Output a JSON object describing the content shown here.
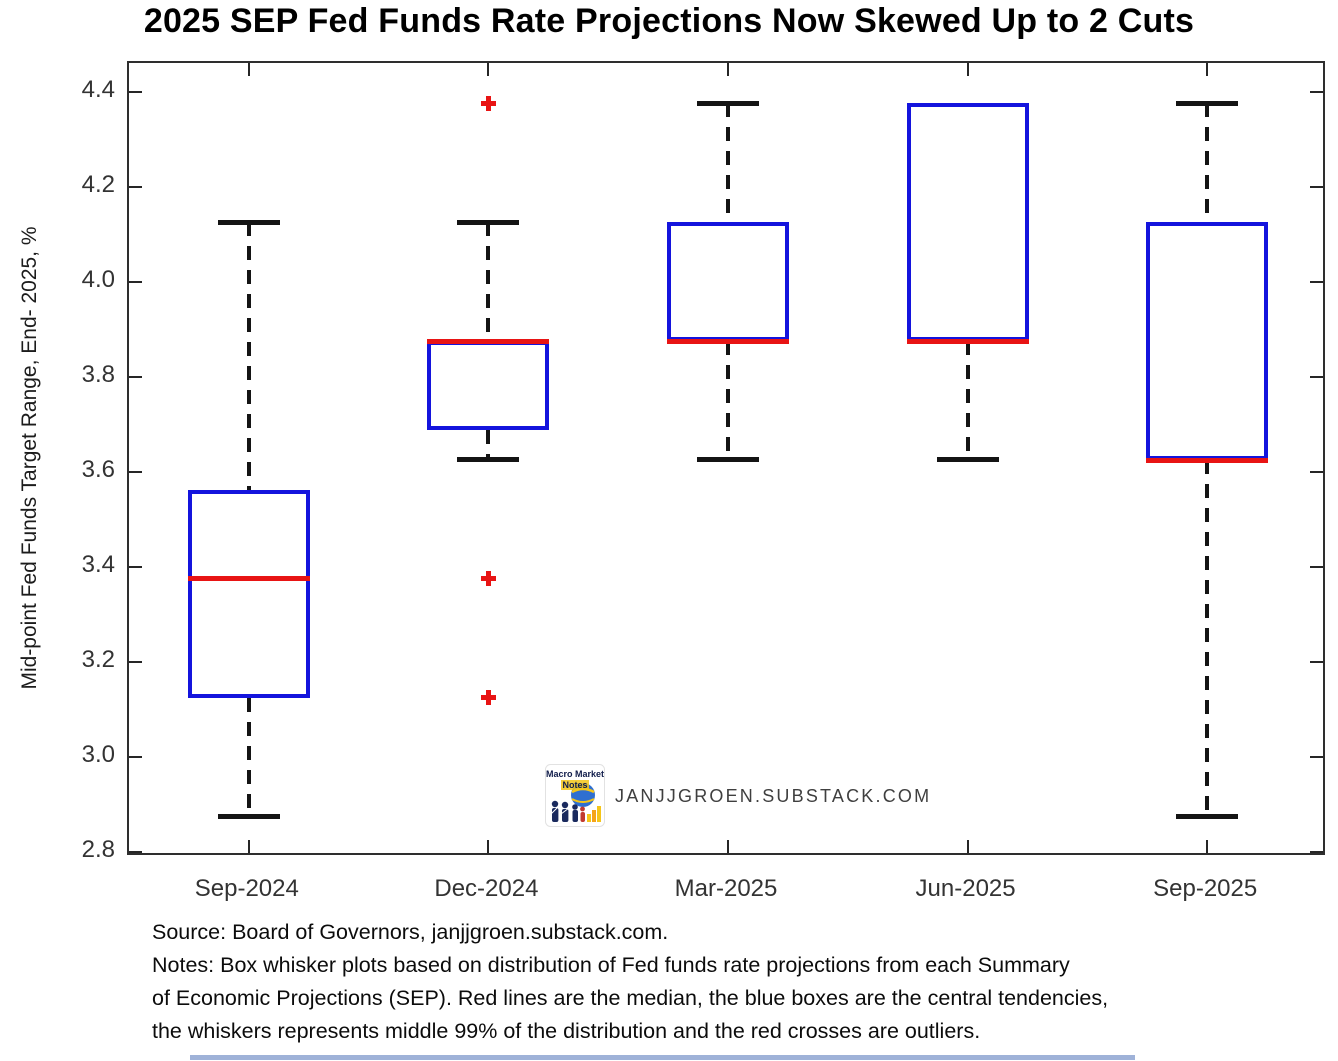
{
  "page": {
    "title": "2025 SEP Fed Funds Rate Projections Now Skewed Up to 2 Cuts"
  },
  "watermark": {
    "logo_line1": "Macro Market",
    "logo_line2": "Notes",
    "site": "JANJJGROEN.SUBSTACK.COM"
  },
  "footer": {
    "lines": [
      "Source: Board of Governors, janjjgroen.substack.com.",
      "Notes: Box whisker plots based on distribution of Fed funds rate projections from each Summary",
      "of Economic Projections (SEP). Red lines are the median, the blue boxes are the central tendencies,",
      "the whiskers represents middle 99% of the distribution and the red crosses are outliers."
    ]
  },
  "chart_data": {
    "type": "boxplot",
    "title": "2025 SEP Fed Funds Rate Projections Now Skewed Up to 2 Cuts",
    "xlabel": "",
    "ylabel": "Mid-point Fed Funds Target Range, End- 2025, %",
    "ylim": [
      2.79,
      4.46
    ],
    "yticks": [
      2.8,
      3.0,
      3.2,
      3.4,
      3.6,
      3.8,
      4.0,
      4.2,
      4.4
    ],
    "ytick_labels": [
      "2.8",
      "3.0",
      "3.2",
      "3.4",
      "3.6",
      "3.8",
      "4.0",
      "4.2",
      "4.4"
    ],
    "grid": false,
    "legend": "none",
    "categories": [
      "Sep-2024",
      "Dec-2024",
      "Mar-2025",
      "Jun-2025",
      "Sep-2025"
    ],
    "series": [
      {
        "category": "Sep-2024",
        "whisker_low": 2.875,
        "q1": 3.125,
        "median": 3.375,
        "q3": 3.5625,
        "whisker_high": 4.125,
        "outliers": []
      },
      {
        "category": "Dec-2024",
        "whisker_low": 3.625,
        "q1": 3.6875,
        "median": 3.875,
        "q3": 3.875,
        "whisker_high": 4.125,
        "outliers": [
          4.375,
          3.375,
          3.125
        ]
      },
      {
        "category": "Mar-2025",
        "whisker_low": 3.625,
        "q1": 3.875,
        "median": 3.875,
        "q3": 4.125,
        "whisker_high": 4.375,
        "outliers": []
      },
      {
        "category": "Jun-2025",
        "whisker_low": 3.625,
        "q1": 3.875,
        "median": 3.875,
        "q3": 4.375,
        "whisker_high": 4.375,
        "outliers": []
      },
      {
        "category": "Sep-2025",
        "whisker_low": 2.875,
        "q1": 3.625,
        "median": 3.625,
        "q3": 4.125,
        "whisker_high": 4.375,
        "outliers": []
      }
    ],
    "colors": {
      "box_border": "#1414dd",
      "median": "#e81414",
      "outlier": "#e81414",
      "whisker": "#141414",
      "axis": "#262626"
    }
  }
}
